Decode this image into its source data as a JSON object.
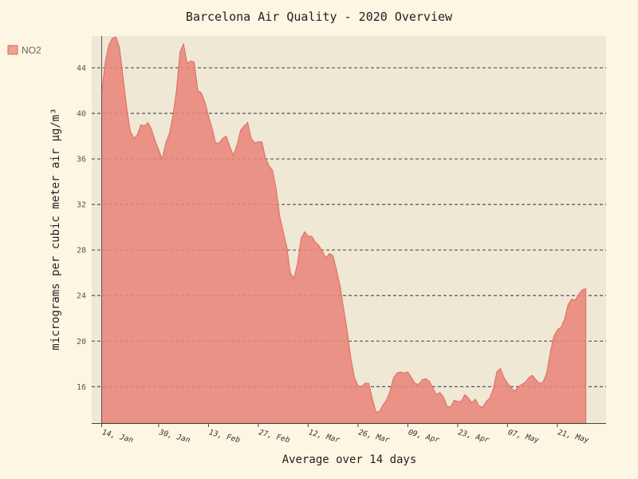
{
  "chart_data": {
    "type": "area",
    "title": "Barcelona Air Quality - 2020 Overview",
    "xlabel": "Average over 14 days",
    "ylabel": "micrograms per cubic meter air μg/m³",
    "ylim": [
      12.8,
      46.8
    ],
    "yticks": [
      16,
      20,
      24,
      28,
      32,
      36,
      40,
      44
    ],
    "xlim": [
      "2020-01-14",
      "2020-06-01"
    ],
    "xticks": [
      {
        "date": "2020-01-14",
        "label": "14, Jan"
      },
      {
        "date": "2020-01-30",
        "label": "30, Jan"
      },
      {
        "date": "2020-02-13",
        "label": "13, Feb"
      },
      {
        "date": "2020-02-27",
        "label": "27, Feb"
      },
      {
        "date": "2020-03-12",
        "label": "12, Mar"
      },
      {
        "date": "2020-03-26",
        "label": "26, Mar"
      },
      {
        "date": "2020-04-09",
        "label": "09, Apr"
      },
      {
        "date": "2020-04-23",
        "label": "23, Apr"
      },
      {
        "date": "2020-05-07",
        "label": "07, May"
      },
      {
        "date": "2020-05-21",
        "label": "21, May"
      }
    ],
    "grid": "horizontal-dashed",
    "legend_position": "top-left",
    "colors": {
      "fill": "#e8857a",
      "line": "#e06b60",
      "plot_bg": "#eee8d5",
      "page_bg": "#fdf6e3",
      "grid": "#555555"
    },
    "series": [
      {
        "name": "NO2",
        "points": [
          [
            "2020-01-14",
            41.8
          ],
          [
            "2020-01-15",
            44.5
          ],
          [
            "2020-01-16",
            46.0
          ],
          [
            "2020-01-17",
            46.6
          ],
          [
            "2020-01-18",
            46.7
          ],
          [
            "2020-01-19",
            45.8
          ],
          [
            "2020-01-20",
            43.2
          ],
          [
            "2020-01-21",
            40.6
          ],
          [
            "2020-01-22",
            38.5
          ],
          [
            "2020-01-23",
            37.8
          ],
          [
            "2020-01-24",
            38.1
          ],
          [
            "2020-01-25",
            39.0
          ],
          [
            "2020-01-26",
            38.9
          ],
          [
            "2020-01-27",
            39.2
          ],
          [
            "2020-01-28",
            38.6
          ],
          [
            "2020-01-29",
            37.6
          ],
          [
            "2020-01-30",
            36.8
          ],
          [
            "2020-01-31",
            36.0
          ],
          [
            "2020-02-01",
            37.4
          ],
          [
            "2020-02-02",
            38.2
          ],
          [
            "2020-02-03",
            39.8
          ],
          [
            "2020-02-04",
            42.0
          ],
          [
            "2020-02-05",
            45.4
          ],
          [
            "2020-02-06",
            46.1
          ],
          [
            "2020-02-07",
            44.4
          ],
          [
            "2020-02-08",
            44.6
          ],
          [
            "2020-02-09",
            44.5
          ],
          [
            "2020-02-10",
            42.0
          ],
          [
            "2020-02-11",
            41.8
          ],
          [
            "2020-02-12",
            41.0
          ],
          [
            "2020-02-13",
            39.8
          ],
          [
            "2020-02-14",
            38.7
          ],
          [
            "2020-02-15",
            37.4
          ],
          [
            "2020-02-16",
            37.4
          ],
          [
            "2020-02-17",
            37.8
          ],
          [
            "2020-02-18",
            38.0
          ],
          [
            "2020-02-19",
            37.1
          ],
          [
            "2020-02-20",
            36.3
          ],
          [
            "2020-02-21",
            37.2
          ],
          [
            "2020-02-22",
            38.5
          ],
          [
            "2020-02-23",
            38.9
          ],
          [
            "2020-02-24",
            39.2
          ],
          [
            "2020-02-25",
            37.8
          ],
          [
            "2020-02-26",
            37.4
          ],
          [
            "2020-02-27",
            37.5
          ],
          [
            "2020-02-28",
            37.5
          ],
          [
            "2020-02-29",
            36.1
          ],
          [
            "2020-03-01",
            35.4
          ],
          [
            "2020-03-02",
            35.0
          ],
          [
            "2020-03-03",
            33.4
          ],
          [
            "2020-03-04",
            31.0
          ],
          [
            "2020-03-05",
            29.6
          ],
          [
            "2020-03-06",
            28.3
          ],
          [
            "2020-03-07",
            26.0
          ],
          [
            "2020-03-08",
            25.5
          ],
          [
            "2020-03-09",
            26.8
          ],
          [
            "2020-03-10",
            29.0
          ],
          [
            "2020-03-11",
            29.6
          ],
          [
            "2020-03-12",
            29.2
          ],
          [
            "2020-03-13",
            29.2
          ],
          [
            "2020-03-14",
            28.7
          ],
          [
            "2020-03-15",
            28.4
          ],
          [
            "2020-03-16",
            27.9
          ],
          [
            "2020-03-17",
            27.3
          ],
          [
            "2020-03-18",
            27.7
          ],
          [
            "2020-03-19",
            27.5
          ],
          [
            "2020-03-20",
            26.2
          ],
          [
            "2020-03-21",
            24.8
          ],
          [
            "2020-03-22",
            22.8
          ],
          [
            "2020-03-23",
            20.8
          ],
          [
            "2020-03-24",
            18.5
          ],
          [
            "2020-03-25",
            16.8
          ],
          [
            "2020-03-26",
            16.1
          ],
          [
            "2020-03-27",
            16.0
          ],
          [
            "2020-03-28",
            16.3
          ],
          [
            "2020-03-29",
            16.3
          ],
          [
            "2020-03-30",
            15.0
          ],
          [
            "2020-03-31",
            13.8
          ],
          [
            "2020-04-01",
            13.8
          ],
          [
            "2020-04-02",
            14.4
          ],
          [
            "2020-04-03",
            14.8
          ],
          [
            "2020-04-04",
            15.6
          ],
          [
            "2020-04-05",
            16.8
          ],
          [
            "2020-04-06",
            17.2
          ],
          [
            "2020-04-07",
            17.3
          ],
          [
            "2020-04-08",
            17.2
          ],
          [
            "2020-04-09",
            17.3
          ],
          [
            "2020-04-10",
            16.8
          ],
          [
            "2020-04-11",
            16.3
          ],
          [
            "2020-04-12",
            16.2
          ],
          [
            "2020-04-13",
            16.6
          ],
          [
            "2020-04-14",
            16.7
          ],
          [
            "2020-04-15",
            16.5
          ],
          [
            "2020-04-16",
            15.9
          ],
          [
            "2020-04-17",
            15.3
          ],
          [
            "2020-04-18",
            15.5
          ],
          [
            "2020-04-19",
            15.1
          ],
          [
            "2020-04-20",
            14.3
          ],
          [
            "2020-04-21",
            14.2
          ],
          [
            "2020-04-22",
            14.8
          ],
          [
            "2020-04-23",
            14.7
          ],
          [
            "2020-04-24",
            14.7
          ],
          [
            "2020-04-25",
            15.3
          ],
          [
            "2020-04-26",
            15.0
          ],
          [
            "2020-04-27",
            14.6
          ],
          [
            "2020-04-28",
            14.9
          ],
          [
            "2020-04-29",
            14.3
          ],
          [
            "2020-04-30",
            14.2
          ],
          [
            "2020-05-01",
            14.7
          ],
          [
            "2020-05-02",
            15.0
          ],
          [
            "2020-05-03",
            15.8
          ],
          [
            "2020-05-04",
            17.3
          ],
          [
            "2020-05-05",
            17.6
          ],
          [
            "2020-05-06",
            16.8
          ],
          [
            "2020-05-07",
            16.3
          ],
          [
            "2020-05-08",
            15.9
          ],
          [
            "2020-05-09",
            15.6
          ],
          [
            "2020-05-10",
            16.0
          ],
          [
            "2020-05-11",
            16.2
          ],
          [
            "2020-05-12",
            16.4
          ],
          [
            "2020-05-13",
            16.8
          ],
          [
            "2020-05-14",
            17.0
          ],
          [
            "2020-05-15",
            16.6
          ],
          [
            "2020-05-16",
            16.3
          ],
          [
            "2020-05-17",
            16.4
          ],
          [
            "2020-05-18",
            17.2
          ],
          [
            "2020-05-19",
            19.0
          ],
          [
            "2020-05-20",
            20.4
          ],
          [
            "2020-05-21",
            21.0
          ],
          [
            "2020-05-22",
            21.2
          ],
          [
            "2020-05-23",
            21.9
          ],
          [
            "2020-05-24",
            23.2
          ],
          [
            "2020-05-25",
            23.7
          ],
          [
            "2020-05-26",
            23.6
          ],
          [
            "2020-05-27",
            24.1
          ],
          [
            "2020-05-28",
            24.5
          ],
          [
            "2020-05-29",
            24.6
          ]
        ]
      }
    ]
  }
}
